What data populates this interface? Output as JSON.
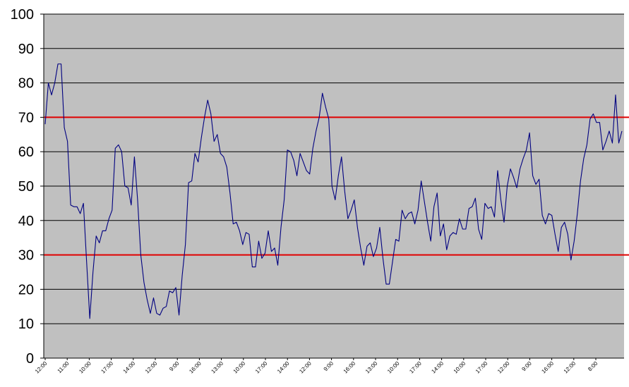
{
  "chart_data": {
    "type": "line",
    "title": "",
    "xlabel": "",
    "ylabel": "",
    "ylim": [
      0,
      100
    ],
    "yticks": [
      0,
      10,
      20,
      30,
      40,
      50,
      60,
      70,
      80,
      90,
      100
    ],
    "grid": true,
    "legend": "none",
    "x_tick_labels": [
      "12:00",
      "11:00",
      "10:00",
      "17:00",
      "14:00",
      "12:00",
      "9:00",
      "16:00",
      "13:00",
      "10:00",
      "17:00",
      "14:00",
      "12:00",
      "9:00",
      "16:00",
      "13:00",
      "10:00",
      "17:00",
      "14:00",
      "10:00",
      "17:00",
      "12:00",
      "9:00",
      "16:00",
      "12:00",
      "8:00"
    ],
    "threshold_lines": [
      70,
      30
    ],
    "colors": {
      "plot_bg": "#c0c0c0",
      "line": "#000080",
      "threshold": "#e00000",
      "grid": "#000000"
    },
    "series": [
      {
        "values": [
          68,
          80,
          76.5,
          80,
          85.5,
          85.5,
          67,
          63,
          44.5,
          44,
          44,
          42,
          45,
          28,
          11.5,
          25,
          35.5,
          33.5,
          37,
          37,
          40.5,
          43,
          61,
          62,
          60,
          50,
          49.5,
          44.5,
          58.5,
          46,
          30,
          22,
          17,
          13,
          17.5,
          13,
          12.5,
          14.5,
          15,
          19.5,
          19,
          20.5,
          12.5,
          24,
          33,
          51,
          51.5,
          59.5,
          57,
          64,
          70,
          75,
          71,
          63,
          65,
          59.5,
          58.5,
          55.5,
          48,
          39,
          39.5,
          37,
          33,
          36.5,
          36,
          26.5,
          26.5,
          34,
          29,
          30.5,
          37,
          31,
          32,
          27,
          38,
          46,
          60.5,
          60,
          57.5,
          53,
          59.5,
          57,
          54.5,
          53.5,
          61,
          66,
          70,
          77,
          73,
          69.5,
          50,
          46,
          53,
          58.5,
          48.5,
          40.5,
          43,
          46,
          38,
          32,
          27,
          32.5,
          33.5,
          29.5,
          32,
          38,
          29,
          21.5,
          21.5,
          28,
          34.5,
          34,
          43,
          40.5,
          42,
          42.5,
          39,
          43,
          51.5,
          45.5,
          39.5,
          34,
          44,
          48,
          35.5,
          39,
          31.5,
          35.5,
          36.5,
          36,
          40.5,
          37.5,
          37.5,
          43.5,
          44,
          46.5,
          37.5,
          34.5,
          45,
          43.5,
          44,
          41,
          54.5,
          46,
          39.5,
          50,
          55,
          52.5,
          49.5,
          55,
          58,
          60.5,
          65.5,
          53,
          50.5,
          52,
          41.5,
          39,
          42,
          41.5,
          36,
          31,
          38,
          39.5,
          36,
          28.5,
          34,
          42,
          51.5,
          58,
          62,
          69.5,
          71,
          68.5,
          68.5,
          60.5,
          63,
          66,
          62.5,
          76.5,
          62.5,
          66
        ]
      }
    ]
  }
}
